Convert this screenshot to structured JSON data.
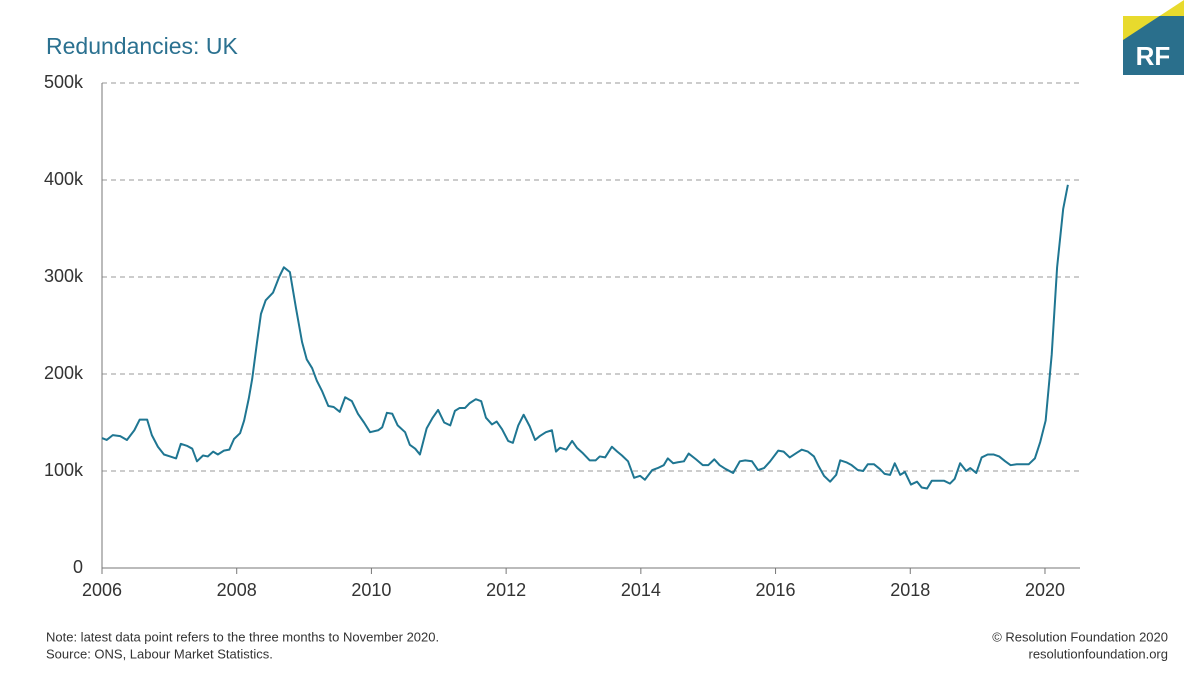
{
  "chart_data": {
    "type": "line",
    "title": "Redundancies: UK",
    "xlim": [
      2006,
      2020.52
    ],
    "xticks": [
      2006,
      2008,
      2010,
      2012,
      2014,
      2016,
      2018,
      2020
    ],
    "ylim": [
      0,
      500000
    ],
    "yticks": [
      0,
      {
        "value": 100000,
        "label": "100k"
      },
      {
        "value": 200000,
        "label": "200k"
      },
      {
        "value": 300000,
        "label": "300k"
      },
      {
        "value": 400000,
        "label": "400k"
      },
      {
        "value": 500000,
        "label": "500k"
      }
    ],
    "grid": true,
    "series": [
      {
        "color": "#1f7692",
        "x": [
          2006.0,
          2006.07,
          2006.16,
          2006.27,
          2006.37,
          2006.48,
          2006.56,
          2006.67,
          2006.74,
          2006.83,
          2006.92,
          2007.01,
          2007.1,
          2007.17,
          2007.26,
          2007.34,
          2007.41,
          2007.5,
          2007.57,
          2007.65,
          2007.72,
          2007.81,
          2007.89,
          2007.96,
          2008.05,
          2008.11,
          2008.18,
          2008.23,
          2008.3,
          2008.36,
          2008.43,
          2008.54,
          2008.63,
          2008.7,
          2008.79,
          2008.88,
          2008.97,
          2009.04,
          2009.12,
          2009.19,
          2009.27,
          2009.36,
          2009.44,
          2009.53,
          2009.61,
          2009.71,
          2009.8,
          2009.89,
          2009.98,
          2010.1,
          2010.16,
          2010.23,
          2010.31,
          2010.39,
          2010.5,
          2010.57,
          2010.65,
          2010.72,
          2010.82,
          2010.91,
          2010.99,
          2011.08,
          2011.17,
          2011.24,
          2011.31,
          2011.39,
          2011.46,
          2011.55,
          2011.63,
          2011.7,
          2011.79,
          2011.86,
          2011.94,
          2012.03,
          2012.1,
          2012.18,
          2012.26,
          2012.35,
          2012.43,
          2012.5,
          2012.59,
          2012.68,
          2012.74,
          2012.8,
          2012.89,
          2012.98,
          2013.05,
          2013.13,
          2013.24,
          2013.33,
          2013.39,
          2013.47,
          2013.57,
          2013.65,
          2013.72,
          2013.81,
          2013.9,
          2013.99,
          2014.06,
          2014.17,
          2014.25,
          2014.34,
          2014.4,
          2014.48,
          2014.55,
          2014.64,
          2014.71,
          2014.82,
          2014.92,
          2015.0,
          2015.09,
          2015.17,
          2015.26,
          2015.37,
          2015.47,
          2015.55,
          2015.65,
          2015.74,
          2015.83,
          2015.92,
          2016.04,
          2016.12,
          2016.21,
          2016.32,
          2016.39,
          2016.48,
          2016.57,
          2016.64,
          2016.72,
          2016.81,
          2016.9,
          2016.96,
          2017.05,
          2017.13,
          2017.22,
          2017.3,
          2017.37,
          2017.46,
          2017.55,
          2017.62,
          2017.7,
          2017.77,
          2017.85,
          2017.92,
          2018.01,
          2018.1,
          2018.17,
          2018.25,
          2018.32,
          2018.41,
          2018.5,
          2018.59,
          2018.66,
          2018.74,
          2018.83,
          2018.89,
          2018.98,
          2019.06,
          2019.15,
          2019.24,
          2019.32,
          2019.41,
          2019.49,
          2019.58,
          2019.67,
          2019.76,
          2019.85,
          2019.93,
          2020.01,
          2020.1,
          2020.18,
          2020.27,
          2020.34
        ],
        "values": [
          134000,
          132000,
          137000,
          136000,
          132000,
          142000,
          153000,
          153000,
          137000,
          125000,
          117000,
          115000,
          113000,
          128000,
          126000,
          123000,
          110000,
          116000,
          115000,
          120000,
          117000,
          121000,
          122000,
          133000,
          139000,
          152000,
          175000,
          195000,
          232000,
          262000,
          276000,
          284000,
          300000,
          310000,
          305000,
          268000,
          233000,
          215000,
          206000,
          193000,
          182000,
          167000,
          166000,
          161000,
          176000,
          172000,
          159000,
          150000,
          140000,
          142000,
          145000,
          160000,
          159000,
          147000,
          140000,
          127000,
          123000,
          117000,
          144000,
          155000,
          163000,
          150000,
          147000,
          162000,
          165000,
          165000,
          170000,
          174000,
          172000,
          155000,
          148000,
          151000,
          143000,
          131000,
          129000,
          147000,
          158000,
          146000,
          132000,
          136000,
          140000,
          142000,
          120000,
          124000,
          122000,
          131000,
          124000,
          119000,
          111000,
          111000,
          115000,
          114000,
          125000,
          120000,
          116000,
          110000,
          93000,
          95000,
          91000,
          101000,
          103000,
          106000,
          113000,
          108000,
          109000,
          110000,
          118000,
          112000,
          106000,
          106000,
          112000,
          106000,
          102000,
          98000,
          110000,
          111000,
          110000,
          101000,
          103000,
          110000,
          121000,
          120000,
          114000,
          119000,
          122000,
          120000,
          115000,
          105000,
          95000,
          89000,
          96000,
          111000,
          109000,
          106000,
          101000,
          100000,
          107000,
          107000,
          102000,
          97000,
          96000,
          108000,
          96000,
          99000,
          86000,
          89000,
          83000,
          82000,
          90000,
          90000,
          90000,
          87000,
          92000,
          108000,
          100000,
          103000,
          98000,
          114000,
          117000,
          117000,
          115000,
          110000,
          106000,
          107000,
          107000,
          107000,
          113000,
          130000,
          152000,
          220000,
          310000,
          370000,
          395000
        ]
      }
    ]
  },
  "footer": {
    "note": "Note: latest data point refers to the three months to November 2020.",
    "source": "Source: ONS, Labour Market Statistics.",
    "copyright": "© Resolution Foundation 2020",
    "url": "resolutionfoundation.org",
    "logo": "RF"
  }
}
